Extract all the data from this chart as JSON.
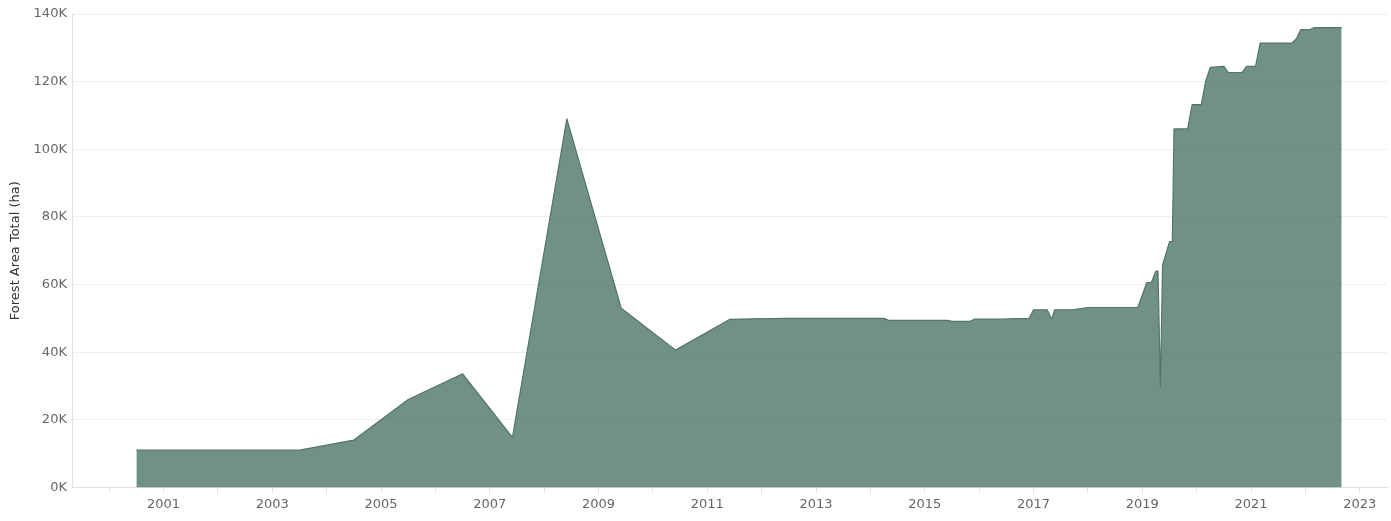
{
  "chart_data": {
    "type": "area",
    "ylabel": "Forest Area Total (ha)",
    "grid": "y",
    "marker": "none",
    "xlim": [
      "1999-05",
      "2023-07"
    ],
    "xticks": [
      {
        "value": "2000",
        "label": null
      },
      "2001",
      {
        "value": "2002",
        "label": null
      },
      "2003",
      {
        "value": "2004",
        "label": null
      },
      "2005",
      {
        "value": "2006",
        "label": null
      },
      "2007",
      {
        "value": "2008",
        "label": null
      },
      "2009",
      {
        "value": "2010",
        "label": null
      },
      "2011",
      {
        "value": "2012",
        "label": null
      },
      "2013",
      {
        "value": "2014",
        "label": null
      },
      "2015",
      {
        "value": "2016",
        "label": null
      },
      "2017",
      {
        "value": "2018",
        "label": null
      },
      "2019",
      {
        "value": "2020",
        "label": null
      },
      "2021",
      {
        "value": "2022",
        "label": null
      },
      "2023"
    ],
    "ylim": [
      0,
      140000
    ],
    "yticks": [
      {
        "value": 0,
        "label": "0K"
      },
      {
        "value": 20000,
        "label": "20K"
      },
      {
        "value": 40000,
        "label": "40K"
      },
      {
        "value": 60000,
        "label": "60K"
      },
      {
        "value": 80000,
        "label": "80K"
      },
      {
        "value": 100000,
        "label": "100K"
      },
      {
        "value": 120000,
        "label": "120K"
      },
      {
        "value": 140000,
        "label": "140K"
      }
    ],
    "x": [
      "2000-07",
      "2003-07",
      "2004-07",
      "2005-07",
      "2006-07",
      "2007-06",
      "2008-06",
      "2009-06",
      "2010-06",
      "2011-06",
      "2012-06",
      "2014-04",
      "2014-05",
      "2015-06",
      "2015-07",
      "2015-11",
      "2015-12",
      "2016-06",
      "2016-12",
      "2017-01",
      "2017-04",
      "2017-05",
      "2017-05-20",
      "2017-10",
      "2018-01",
      "2018-12",
      "2019-02",
      "2019-03",
      "2019-04",
      "2019-04-15",
      "2019-05",
      "2019-05-15",
      "2019-07",
      "2019-07-20",
      "2019-08",
      "2019-11",
      "2019-12",
      "2020-02",
      "2020-03",
      "2020-04",
      "2020-07",
      "2020-08",
      "2020-11",
      "2020-12",
      "2021-02",
      "2021-03",
      "2021-10",
      "2021-11",
      "2021-12",
      "2022-02",
      "2022-03",
      "2022-09"
    ],
    "series": [
      {
        "color": "#4f7668",
        "values": [
          11000,
          11000,
          14000,
          26000,
          33600,
          14800,
          109000,
          53000,
          40600,
          49700,
          50000,
          50000,
          49400,
          49400,
          49100,
          49100,
          49800,
          49800,
          50000,
          52500,
          52500,
          49700,
          52500,
          52600,
          53200,
          53200,
          60600,
          60600,
          64000,
          64000,
          29700,
          65700,
          72700,
          72700,
          106000,
          106000,
          113200,
          113200,
          120200,
          124200,
          124500,
          122700,
          122700,
          124500,
          124500,
          131400,
          131400,
          132700,
          135400,
          135400,
          136000,
          136000
        ]
      }
    ]
  }
}
